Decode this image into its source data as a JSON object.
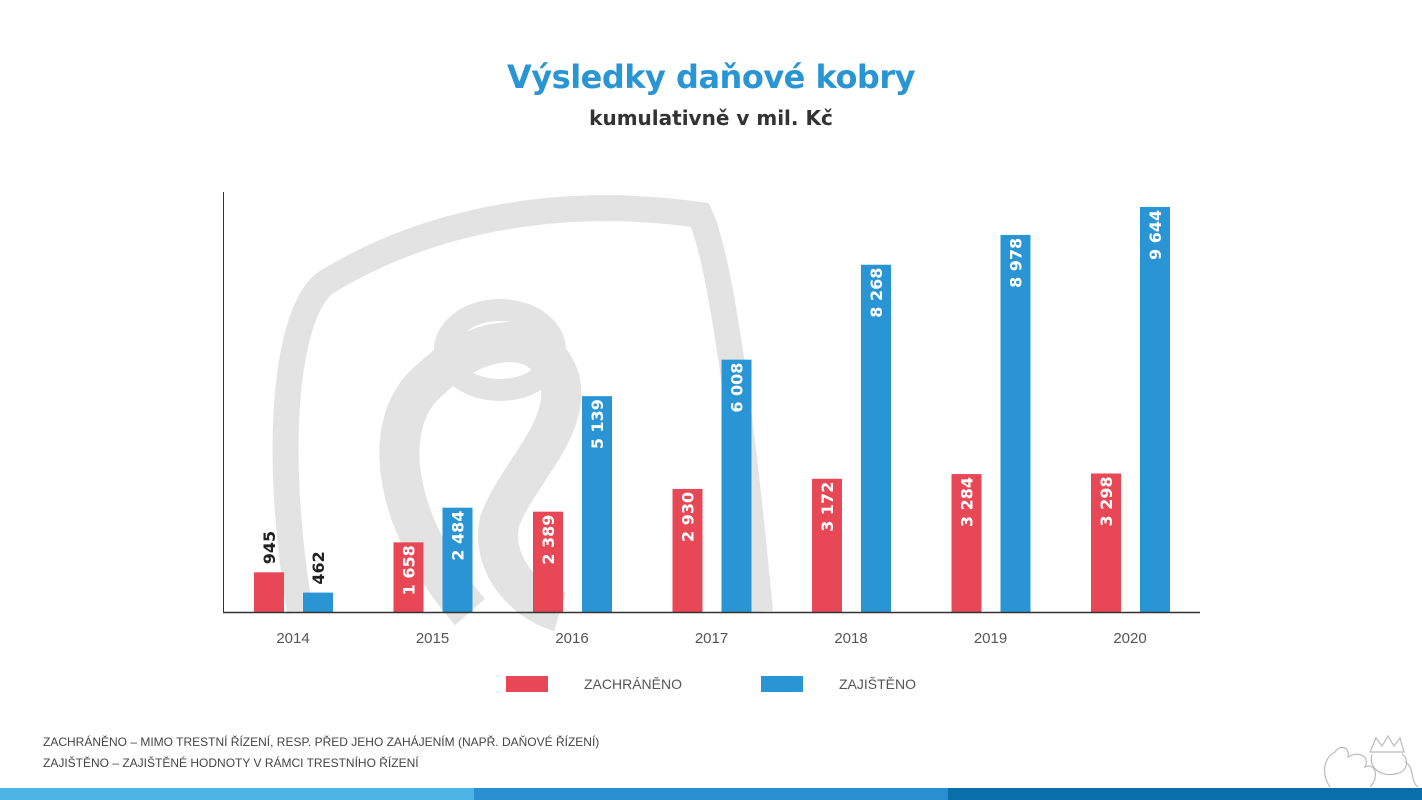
{
  "chart_data": {
    "type": "bar",
    "title": "Výsledky daňové kobry",
    "subtitle": "kumulativně v mil. Kč",
    "categories": [
      "2014",
      "2015",
      "2016",
      "2017",
      "2018",
      "2019",
      "2020"
    ],
    "series": [
      {
        "name": "ZACHRÁNĚNO",
        "color": "#e84855",
        "values": [
          945,
          1658,
          2389,
          2930,
          3172,
          3284,
          3298
        ],
        "labels": [
          "945",
          "1 658",
          "2 389",
          "2 930",
          "3 172",
          "3 284",
          "3 298"
        ]
      },
      {
        "name": "ZAJIŠTĚNO",
        "color": "#2a95d4",
        "values": [
          462,
          2484,
          5139,
          6008,
          8268,
          8978,
          9644
        ],
        "labels": [
          "462",
          "2 484",
          "5 139",
          "6 008",
          "8 268",
          "8 978",
          "9 644"
        ]
      }
    ],
    "ylim": [
      0,
      10000
    ],
    "grid": false,
    "legend_position": "bottom"
  },
  "notes": [
    "ZACHRÁNĚNO – MIMO TRESTNÍ ŘÍZENÍ, RESP. PŘED JEHO ZAHÁJENÍM (NAPŘ. DAŇOVÉ ŘÍZENÍ)",
    "ZAJIŠTĚNO – ZAJIŠTĚNÉ HODNOTY V RÁMCI TRESTNÍHO ŘÍZENÍ"
  ],
  "footer_colors": [
    "#4db4e6",
    "#2a8fd0",
    "#0a6ea8"
  ],
  "icons": [
    "cobra-watermark",
    "lion-emblem"
  ]
}
